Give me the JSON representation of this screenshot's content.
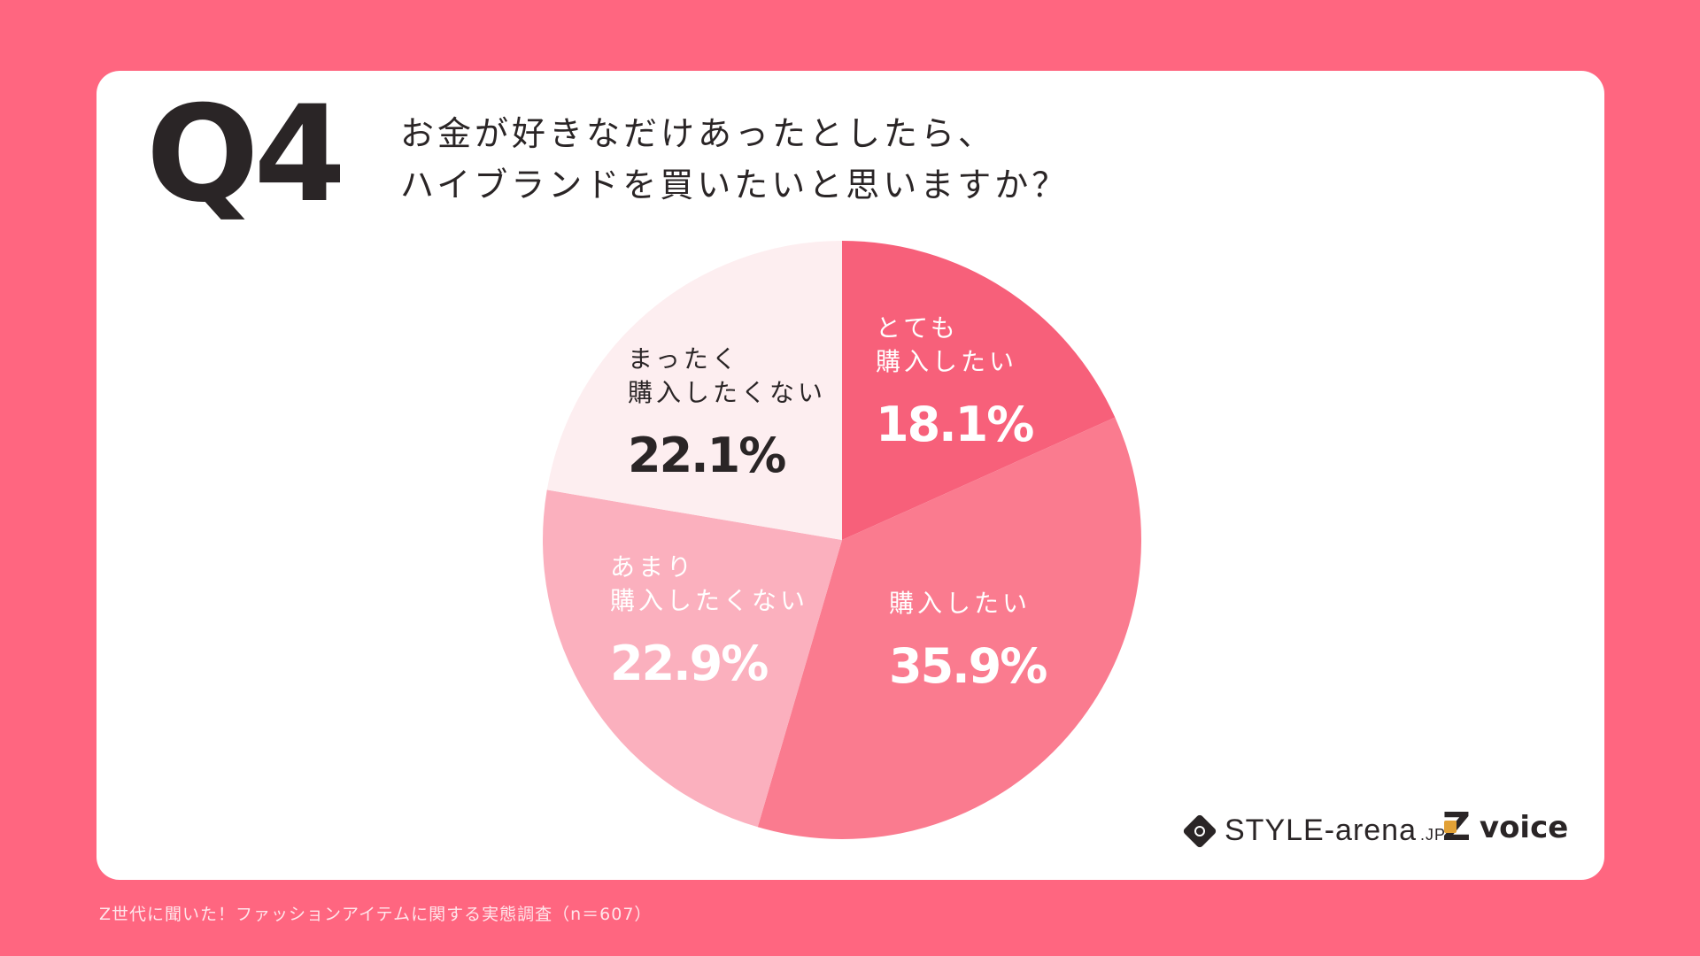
{
  "header": {
    "question_number": "Q4",
    "question_line1": "お金が好きなだけあったとしたら、",
    "question_line2": "ハイブランドを買いたいと思いますか？"
  },
  "chart_data": {
    "type": "pie",
    "title": "お金が好きなだけあったとしたら、ハイブランドを買いたいと思いますか？",
    "start": "12 o'clock, clockwise",
    "slices": [
      {
        "label_lines": [
          "とても",
          "購入したい"
        ],
        "value": 18.1,
        "display": "18.1%",
        "color": "#f7607a",
        "text_color": "#ffffff"
      },
      {
        "label_lines": [
          "購入したい"
        ],
        "value": 35.9,
        "display": "35.9%",
        "color": "#fa7b8f",
        "text_color": "#ffffff"
      },
      {
        "label_lines": [
          "あまり",
          "購入したくない"
        ],
        "value": 22.9,
        "display": "22.9%",
        "color": "#fbb0be",
        "text_color": "#ffffff"
      },
      {
        "label_lines": [
          "まったく",
          "購入したくない"
        ],
        "value": 22.1,
        "display": "22.1%",
        "color": "#fdeef0",
        "text_color": "#2a2526"
      }
    ]
  },
  "logos": {
    "style_arena": "STYLE-arena",
    "style_arena_suffix": ".JP",
    "zvoice": "voice",
    "zvoice_mark": "Z"
  },
  "footnote": "Z世代に聞いた！ファッションアイテムに関する実態調査（n＝607）",
  "colors": {
    "background": "#ff6680",
    "card": "#ffffff",
    "text_dark": "#2a2526",
    "accent_orange": "#e2a136"
  }
}
